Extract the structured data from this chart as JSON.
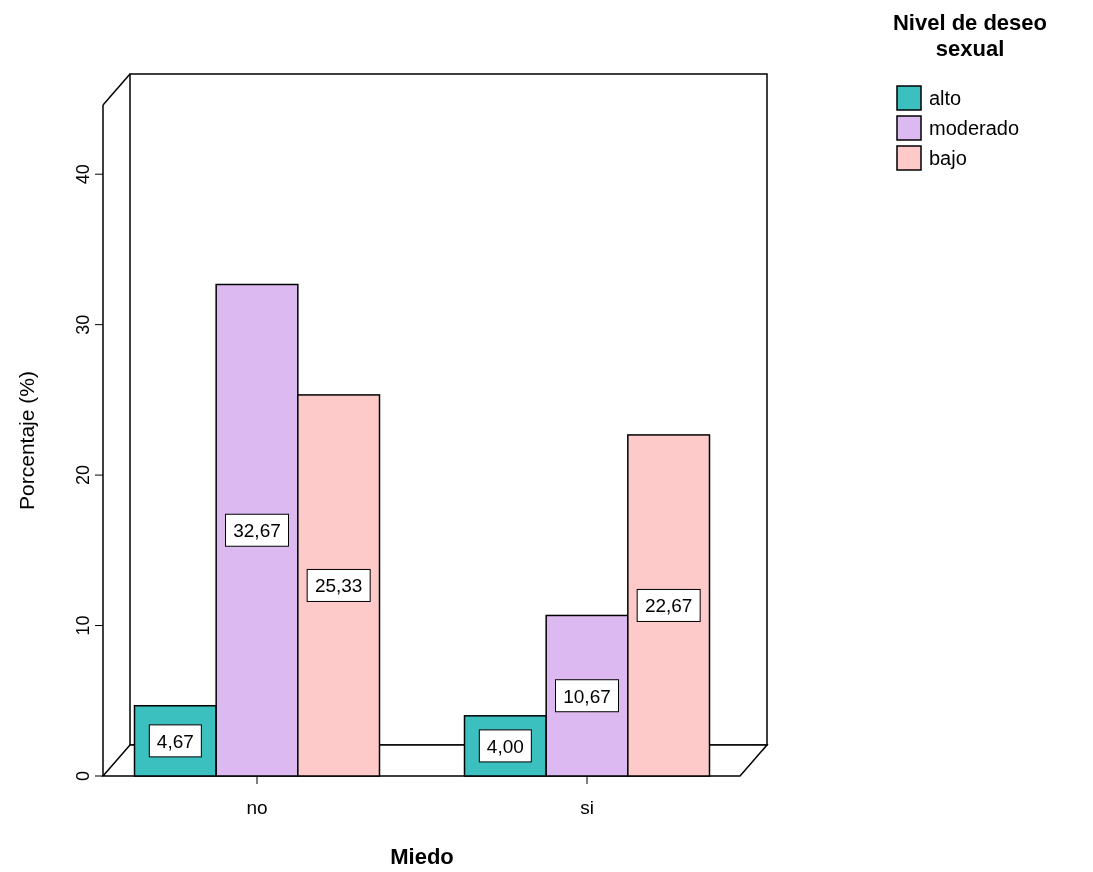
{
  "chart_data": {
    "type": "bar",
    "xlabel": "Miedo",
    "ylabel": "Porcentaje (%)",
    "legend_title": "Nivel de deseo sexual",
    "categories": [
      "no",
      "si"
    ],
    "series": [
      {
        "name": "alto",
        "color": "#3cbfbf",
        "values": [
          4.67,
          4.0
        ],
        "value_labels": [
          "4,67",
          "4,00"
        ]
      },
      {
        "name": "moderado",
        "color": "#dcb9f0",
        "values": [
          32.67,
          10.67
        ],
        "value_labels": [
          "32,67",
          "10,67"
        ]
      },
      {
        "name": "bajo",
        "color": "#fdc9c9",
        "values": [
          25.33,
          22.67
        ],
        "value_labels": [
          "25,33",
          "22,67"
        ]
      }
    ],
    "ylim": [
      0,
      44.6
    ],
    "yticks": [
      0,
      10,
      20,
      30,
      40
    ],
    "grid": false,
    "legend": "top right"
  }
}
